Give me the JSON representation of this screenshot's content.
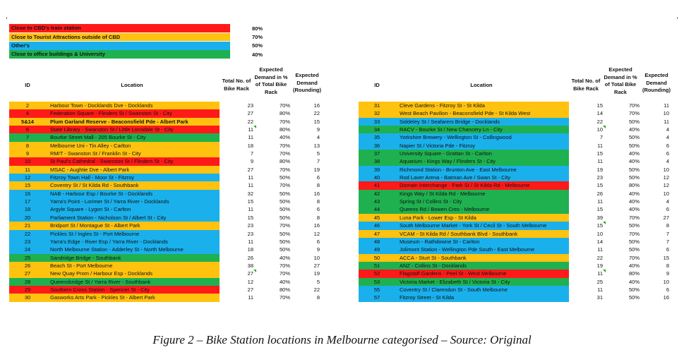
{
  "colors": {
    "red": "#ff1a1a",
    "orange": "#ffc20e",
    "blue": "#1ab0ec",
    "green": "#1fb14f"
  },
  "legend": [
    {
      "label": "Close to CBD's train station",
      "pct": "80%",
      "color": "red"
    },
    {
      "label": "Close to Tourist Attractions outside of CBD",
      "pct": "70%",
      "color": "orange"
    },
    {
      "label": "Other's",
      "pct": "50%",
      "color": "blue"
    },
    {
      "label": "Close to office buildings & University",
      "pct": "40%",
      "color": "green"
    }
  ],
  "headers": {
    "id": "ID",
    "location": "Location",
    "total": "Total No. of Bike Rack",
    "expected_pct": "Expected Demand in % of Total Bike Rack",
    "expected_round": "Expected Demand (Rounding)"
  },
  "left_rows": [
    {
      "id": "2",
      "loc": "Harbour Town - Docklands Dve - Docklands",
      "total": "23",
      "pct": "70%",
      "dem": "16",
      "c": "orange"
    },
    {
      "id": "4",
      "loc": "Federation Square - Flinders St / Swanston St - City",
      "total": "27",
      "pct": "80%",
      "dem": "22",
      "c": "red"
    },
    {
      "id": "5&14",
      "loc": "Plum Garland Reserve - Beaconsfield Pde - Albert Park",
      "total": "22",
      "pct": "70%",
      "dem": "15",
      "c": "orange",
      "bold": true
    },
    {
      "id": "6",
      "loc": "State Library - Swanston St / Little Lonsdale St - City",
      "total": "11",
      "pct": "80%",
      "dem": "9",
      "c": "red",
      "flag": true
    },
    {
      "id": "7",
      "loc": "Bourke Street Mall - 205 Bourke St - City",
      "total": "11",
      "pct": "40%",
      "dem": "4",
      "c": "green"
    },
    {
      "id": "8",
      "loc": "Melbourne Uni - Tin Alley - Carlton",
      "total": "18",
      "pct": "70%",
      "dem": "13",
      "c": "orange"
    },
    {
      "id": "9",
      "loc": "RMIT - Swanston St / Franklin St - City",
      "total": "7",
      "pct": "70%",
      "dem": "5",
      "c": "orange"
    },
    {
      "id": "10",
      "loc": "St Paul's Cathedral - Swanston St / Flinders St - City",
      "total": "9",
      "pct": "80%",
      "dem": "7",
      "c": "red"
    },
    {
      "id": "11",
      "loc": "MSAC - Aughtie Dve - Albert Park",
      "total": "27",
      "pct": "70%",
      "dem": "19",
      "c": "orange"
    },
    {
      "id": "12",
      "loc": "Fitzroy Town Hall - Moor St - Fitzroy",
      "total": "11",
      "pct": "50%",
      "dem": "6",
      "c": "blue"
    },
    {
      "id": "15",
      "loc": "Coventry St / St Kilda Rd - Southbank",
      "total": "11",
      "pct": "70%",
      "dem": "8",
      "c": "orange"
    },
    {
      "id": "16",
      "loc": "NAB - Harbour Esp / Bourke St - Docklands",
      "total": "32",
      "pct": "50%",
      "dem": "16",
      "c": "blue"
    },
    {
      "id": "17",
      "loc": "Yarra's Point - Lorimer St / Yarra River - Docklands",
      "total": "15",
      "pct": "50%",
      "dem": "8",
      "c": "blue"
    },
    {
      "id": "18",
      "loc": "Argyle Square - Lygon St - Carlton",
      "total": "11",
      "pct": "50%",
      "dem": "6",
      "c": "blue"
    },
    {
      "id": "20",
      "loc": "Parliament Station - Nicholson St / Albert St - City",
      "total": "15",
      "pct": "50%",
      "dem": "8",
      "c": "blue"
    },
    {
      "id": "21",
      "loc": "Bridport St / Montague St - Albert Park",
      "total": "23",
      "pct": "70%",
      "dem": "16",
      "c": "orange"
    },
    {
      "id": "22",
      "loc": "Pickles St / Ingles St - Port Melbourne",
      "total": "23",
      "pct": "50%",
      "dem": "12",
      "c": "blue"
    },
    {
      "id": "23",
      "loc": "Yarra's Edge - River Esp / Yarra River - Docklands",
      "total": "11",
      "pct": "50%",
      "dem": "6",
      "c": "blue"
    },
    {
      "id": "24",
      "loc": "North Melbourne Station - Adderley St - North Melbourne",
      "total": "18",
      "pct": "50%",
      "dem": "9",
      "c": "blue"
    },
    {
      "id": "25",
      "loc": "Sandridge Bridge - Southbank",
      "total": "26",
      "pct": "40%",
      "dem": "10",
      "c": "green"
    },
    {
      "id": "26",
      "loc": "Beach St - Port Melbourne",
      "total": "38",
      "pct": "70%",
      "dem": "27",
      "c": "orange"
    },
    {
      "id": "27",
      "loc": "New Quay Prom / Harbour Esp - Docklands",
      "total": "27",
      "pct": "70%",
      "dem": "19",
      "c": "orange",
      "flag": true
    },
    {
      "id": "28",
      "loc": "Queensbridge St / Yarra River - Southbank",
      "total": "12",
      "pct": "40%",
      "dem": "5",
      "c": "green"
    },
    {
      "id": "29",
      "loc": "Southern Cross Station - Spencer St - City",
      "total": "27",
      "pct": "80%",
      "dem": "22",
      "c": "red"
    },
    {
      "id": "30",
      "loc": "Gasworks Arts Park - Pickles St - Albert Park",
      "total": "11",
      "pct": "70%",
      "dem": "8",
      "c": "orange"
    }
  ],
  "right_rows": [
    {
      "id": "31",
      "loc": "Cleve Gardens - Fitzroy St - St Kilda",
      "total": "15",
      "pct": "70%",
      "dem": "11",
      "c": "orange"
    },
    {
      "id": "32",
      "loc": "West Beach Pavilion - Beaconsfield Pde - St Kilda West",
      "total": "14",
      "pct": "70%",
      "dem": "10",
      "c": "orange"
    },
    {
      "id": "33",
      "loc": "Siddeley St / Seafarers Bridge - Docklands",
      "total": "22",
      "pct": "50%",
      "dem": "11",
      "c": "blue"
    },
    {
      "id": "34",
      "loc": "RACV - Bourke St / New Chancery Ln - City",
      "total": "10",
      "pct": "40%",
      "dem": "4",
      "c": "green",
      "flag": true
    },
    {
      "id": "35",
      "loc": "Yorkshire Brewery - Wellington St - Collingwood",
      "total": "7",
      "pct": "50%",
      "dem": "4",
      "c": "blue"
    },
    {
      "id": "36",
      "loc": "Napier St / Victoria Pde - Fitzroy",
      "total": "11",
      "pct": "50%",
      "dem": "6",
      "c": "blue"
    },
    {
      "id": "37",
      "loc": "University Square - Grattan St - Carlton",
      "total": "15",
      "pct": "40%",
      "dem": "6",
      "c": "green"
    },
    {
      "id": "38",
      "loc": "Aquarium - Kings Way / Flinders St - City",
      "total": "11",
      "pct": "40%",
      "dem": "4",
      "c": "green"
    },
    {
      "id": "39",
      "loc": "Richmond Station - Brunton Ave - East Melbourne",
      "total": "19",
      "pct": "50%",
      "dem": "10",
      "c": "blue"
    },
    {
      "id": "40",
      "loc": "Rod Laver Arena - Batman Ave / Swan St - City",
      "total": "23",
      "pct": "50%",
      "dem": "12",
      "c": "blue"
    },
    {
      "id": "41",
      "loc": "Domain Interchange - Park St / St Kilda Rd - Melbourne",
      "total": "15",
      "pct": "80%",
      "dem": "12",
      "c": "red"
    },
    {
      "id": "42",
      "loc": "Kings Way / St Kilda Rd - Melbourne",
      "total": "26",
      "pct": "40%",
      "dem": "10",
      "c": "green"
    },
    {
      "id": "43",
      "loc": "Spring St / Collins St - City",
      "total": "11",
      "pct": "40%",
      "dem": "4",
      "c": "green"
    },
    {
      "id": "44",
      "loc": "Queens Rd / Bowen Cres - Melbourne",
      "total": "15",
      "pct": "40%",
      "dem": "6",
      "c": "green"
    },
    {
      "id": "45",
      "loc": "Luna Park - Lower Esp - St Kilda",
      "total": "39",
      "pct": "70%",
      "dem": "27",
      "c": "orange"
    },
    {
      "id": "46",
      "loc": "South Melbourne Market - York St / Cecil St - South Melbourne",
      "total": "15",
      "pct": "50%",
      "dem": "8",
      "c": "blue",
      "flag": true
    },
    {
      "id": "47",
      "loc": "VCAM - St Kilda Rd / Southbank Blvd - Southbank",
      "total": "10",
      "pct": "70%",
      "dem": "7",
      "c": "orange"
    },
    {
      "id": "48",
      "loc": "Museum - Rathdowne St - Carlton",
      "total": "14",
      "pct": "50%",
      "dem": "7",
      "c": "blue"
    },
    {
      "id": "49",
      "loc": "Jolimont Station - Wellington Pde South - East Melbourne",
      "total": "11",
      "pct": "50%",
      "dem": "6",
      "c": "blue"
    },
    {
      "id": "50",
      "loc": "ACCA - Sturt St - Southbank",
      "total": "22",
      "pct": "70%",
      "dem": "15",
      "c": "orange"
    },
    {
      "id": "51",
      "loc": "ANZ - Collins St - Docklands",
      "total": "19",
      "pct": "40%",
      "dem": "8",
      "c": "green"
    },
    {
      "id": "52",
      "loc": "Flagstaff Gardens - Peel St - West Melbourne",
      "total": "11",
      "pct": "80%",
      "dem": "9",
      "c": "red",
      "flag": true
    },
    {
      "id": "53",
      "loc": "Victoria Market - Elizabeth St / Victoria St - City",
      "total": "25",
      "pct": "40%",
      "dem": "10",
      "c": "green"
    },
    {
      "id": "55",
      "loc": "Coventry St / Clarendon St - South Melbourne",
      "total": "11",
      "pct": "50%",
      "dem": "6",
      "c": "blue"
    },
    {
      "id": "57",
      "loc": "Fitzroy Street - St Kilda",
      "total": "31",
      "pct": "50%",
      "dem": "16",
      "c": "blue"
    }
  ],
  "caption": "Figure 2 – Bike Station locations in Melbourne categorised – Source: Original"
}
